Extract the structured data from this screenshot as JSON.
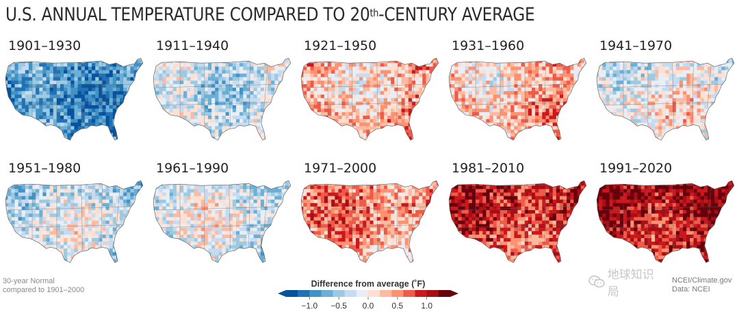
{
  "title": {
    "pre": "U.S. ANNUAL TEMPERATURE COMPARED TO 20",
    "sup": "th",
    "post": "-CENTURY AVERAGE"
  },
  "panels": [
    {
      "period": "1901–1930",
      "tone": -0.85
    },
    {
      "period": "1911–1940",
      "tone": -0.25
    },
    {
      "period": "1921–1950",
      "tone": 0.3
    },
    {
      "period": "1931–1960",
      "tone": 0.28
    },
    {
      "period": "1941–1970",
      "tone": -0.05
    },
    {
      "period": "1951–1980",
      "tone": -0.3
    },
    {
      "period": "1961–1990",
      "tone": -0.2
    },
    {
      "period": "1971–2000",
      "tone": 0.45
    },
    {
      "period": "1981–2010",
      "tone": 0.85
    },
    {
      "period": "1991–2020",
      "tone": 1.05
    }
  ],
  "footnote": {
    "line1": "30-year Normal",
    "line2": "compared to 1901–2000"
  },
  "legend": {
    "title": "Difference from average (˚F)",
    "ticks": [
      "−1.0",
      "−0.5",
      "0.0",
      "0.5",
      "1.0"
    ],
    "colors": [
      "#08519c",
      "#2171b5",
      "#4292c6",
      "#6baed6",
      "#9ecae1",
      "#c6dbef",
      "#e8eef4",
      "#fde0d2",
      "#fcbba1",
      "#fc9272",
      "#ef5b4a",
      "#cb181d",
      "#a50f15",
      "#67000d"
    ]
  },
  "credit": {
    "line1": "NCEI/Climate.gov",
    "line2": "Data: NCEI"
  },
  "watermark": {
    "text": "地球知识局",
    "icon": "wechat-logo-icon"
  }
}
